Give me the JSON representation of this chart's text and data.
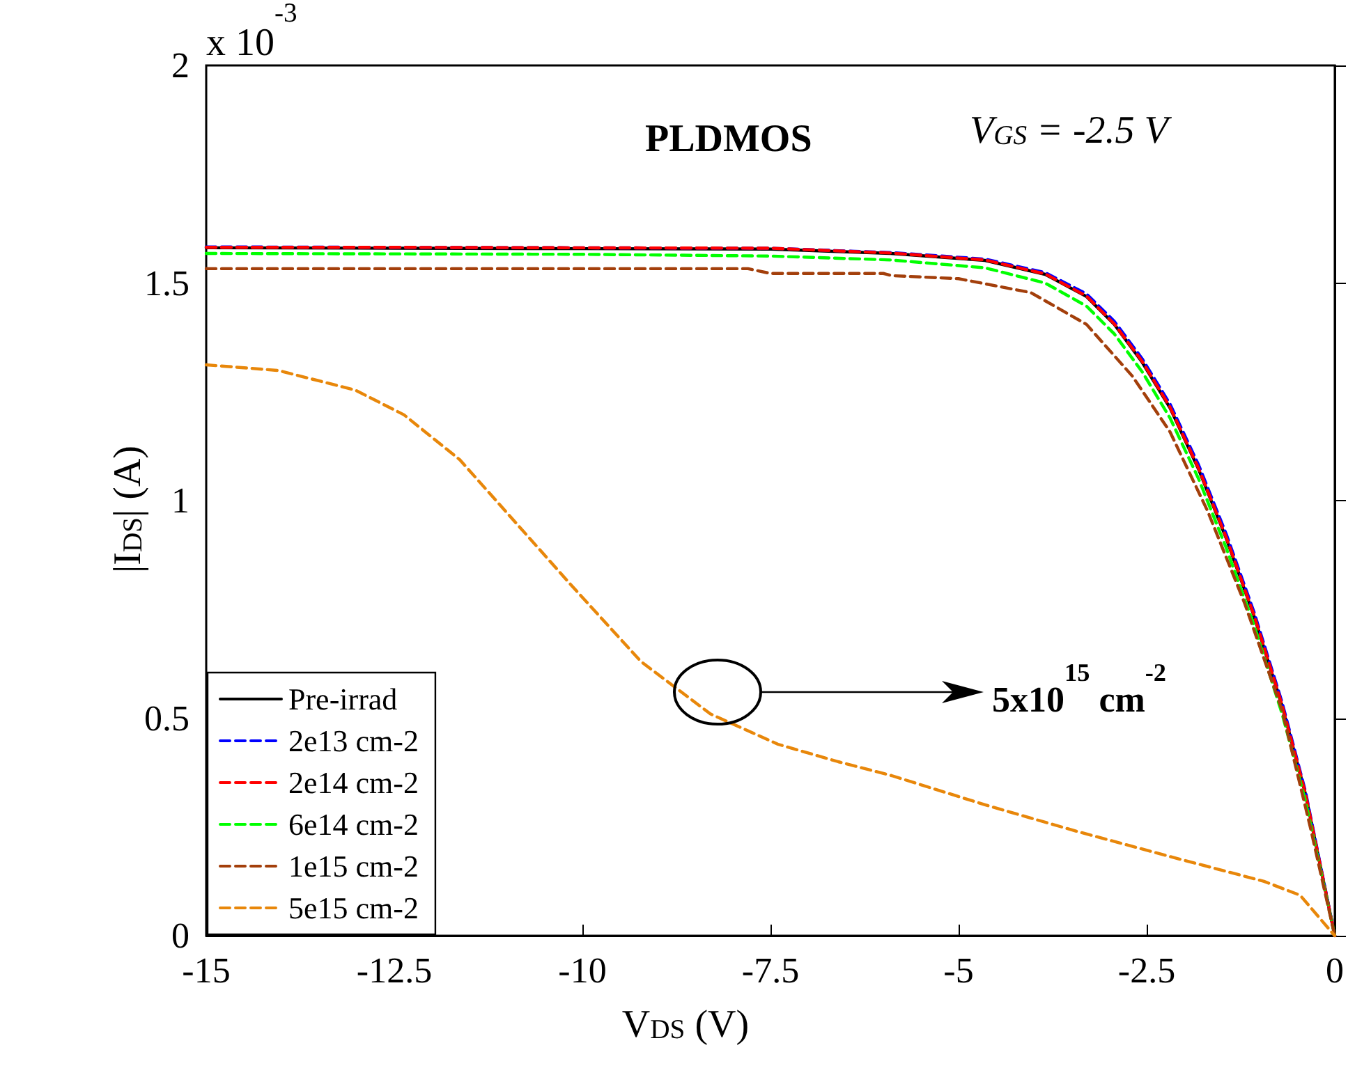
{
  "chart_data": {
    "type": "line",
    "title": "PLDMOS",
    "xlabel": "V$_{DS}$ (V)",
    "ylabel": "|I$_{DS}$| (A)",
    "annotations": [
      "x 10$^{-3}$",
      "V$_{GS}$ = -2.5 V",
      "5x10$^{15}$ cm$^{-2}$"
    ],
    "xlim": [
      -15,
      0
    ],
    "xticks": [
      -15,
      -12.5,
      -10,
      -7.5,
      -5,
      -2.5,
      0
    ],
    "ylim": [
      0,
      2
    ],
    "yticks": [
      0,
      0.5,
      1,
      1.5,
      2
    ],
    "grid": false,
    "legend": "bottom left",
    "marker": "none",
    "series": [
      {
        "name": "Pre-irrad",
        "color": "#000000",
        "line_style": "solid",
        "x": [
          -15,
          -12.5,
          -10,
          -7.5,
          -5.9,
          -4.65,
          -3.85,
          -3.3,
          -2.93,
          -2.56,
          -2.19,
          -1.81,
          -1.44,
          -1.07,
          -0.7,
          -0.39,
          0
        ],
        "values": [
          1.581,
          1.58,
          1.579,
          1.578,
          1.568,
          1.552,
          1.52,
          1.469,
          1.405,
          1.318,
          1.213,
          1.072,
          0.912,
          0.733,
          0.528,
          0.326,
          0
        ]
      },
      {
        "name": "2e13 cm-2",
        "color": "#0000ff",
        "line_style": "dashed",
        "x": [
          -15,
          -12.5,
          -10,
          -7.5,
          -5.9,
          -4.65,
          -3.85,
          -3.3,
          -2.93,
          -2.56,
          -2.19,
          -1.81,
          -1.44,
          -1.07,
          -0.7,
          -0.39,
          0
        ],
        "values": [
          1.583,
          1.582,
          1.581,
          1.58,
          1.57,
          1.555,
          1.524,
          1.475,
          1.412,
          1.326,
          1.222,
          1.082,
          0.922,
          0.742,
          0.536,
          0.332,
          0
        ]
      },
      {
        "name": "2e14 cm-2",
        "color": "#ff0000",
        "line_style": "dashed",
        "x": [
          -15,
          -12.5,
          -10,
          -7.5,
          -5.9,
          -4.65,
          -3.85,
          -3.3,
          -2.93,
          -2.56,
          -2.19,
          -1.81,
          -1.44,
          -1.07,
          -0.7,
          -0.39,
          0
        ],
        "values": [
          1.582,
          1.582,
          1.581,
          1.58,
          1.569,
          1.553,
          1.521,
          1.47,
          1.406,
          1.32,
          1.215,
          1.074,
          0.914,
          0.735,
          0.53,
          0.327,
          0
        ]
      },
      {
        "name": "6e14 cm-2",
        "color": "#00ff00",
        "line_style": "dashed",
        "x": [
          -15,
          -12.5,
          -10,
          -7.5,
          -5.9,
          -4.65,
          -3.85,
          -3.3,
          -2.93,
          -2.56,
          -2.19,
          -1.81,
          -1.44,
          -1.07,
          -0.7,
          -0.39,
          0
        ],
        "values": [
          1.568,
          1.567,
          1.566,
          1.562,
          1.553,
          1.535,
          1.5,
          1.447,
          1.383,
          1.296,
          1.19,
          1.05,
          0.89,
          0.712,
          0.51,
          0.31,
          0
        ]
      },
      {
        "name": "1e15 cm-2",
        "color": "#a33f0b",
        "line_style": "dashed",
        "x": [
          -15,
          -12.5,
          -10,
          -7.8,
          -7.5,
          -6,
          -5.89,
          -5,
          -4.04,
          -3.3,
          -2.69,
          -2.19,
          -1.69,
          -1.2,
          -0.7,
          -0.33,
          0
        ],
        "values": [
          1.533,
          1.533,
          1.533,
          1.533,
          1.522,
          1.522,
          1.517,
          1.51,
          1.478,
          1.405,
          1.286,
          1.158,
          0.976,
          0.765,
          0.518,
          0.253,
          0
        ]
      },
      {
        "name": "5e15 cm-2",
        "color": "#e8870a",
        "line_style": "dashed",
        "x": [
          -15,
          -14.04,
          -13.02,
          -12.37,
          -11.63,
          -10.89,
          -10.15,
          -9.22,
          -8.3,
          -7.4,
          -6.6,
          -5.89,
          -4.65,
          -3.43,
          -2.19,
          -0.94,
          -0.46,
          0
        ],
        "values": [
          1.312,
          1.299,
          1.254,
          1.197,
          1.094,
          0.95,
          0.806,
          0.63,
          0.51,
          0.44,
          0.4,
          0.368,
          0.301,
          0.24,
          0.182,
          0.125,
          0.093,
          0
        ]
      }
    ]
  }
}
